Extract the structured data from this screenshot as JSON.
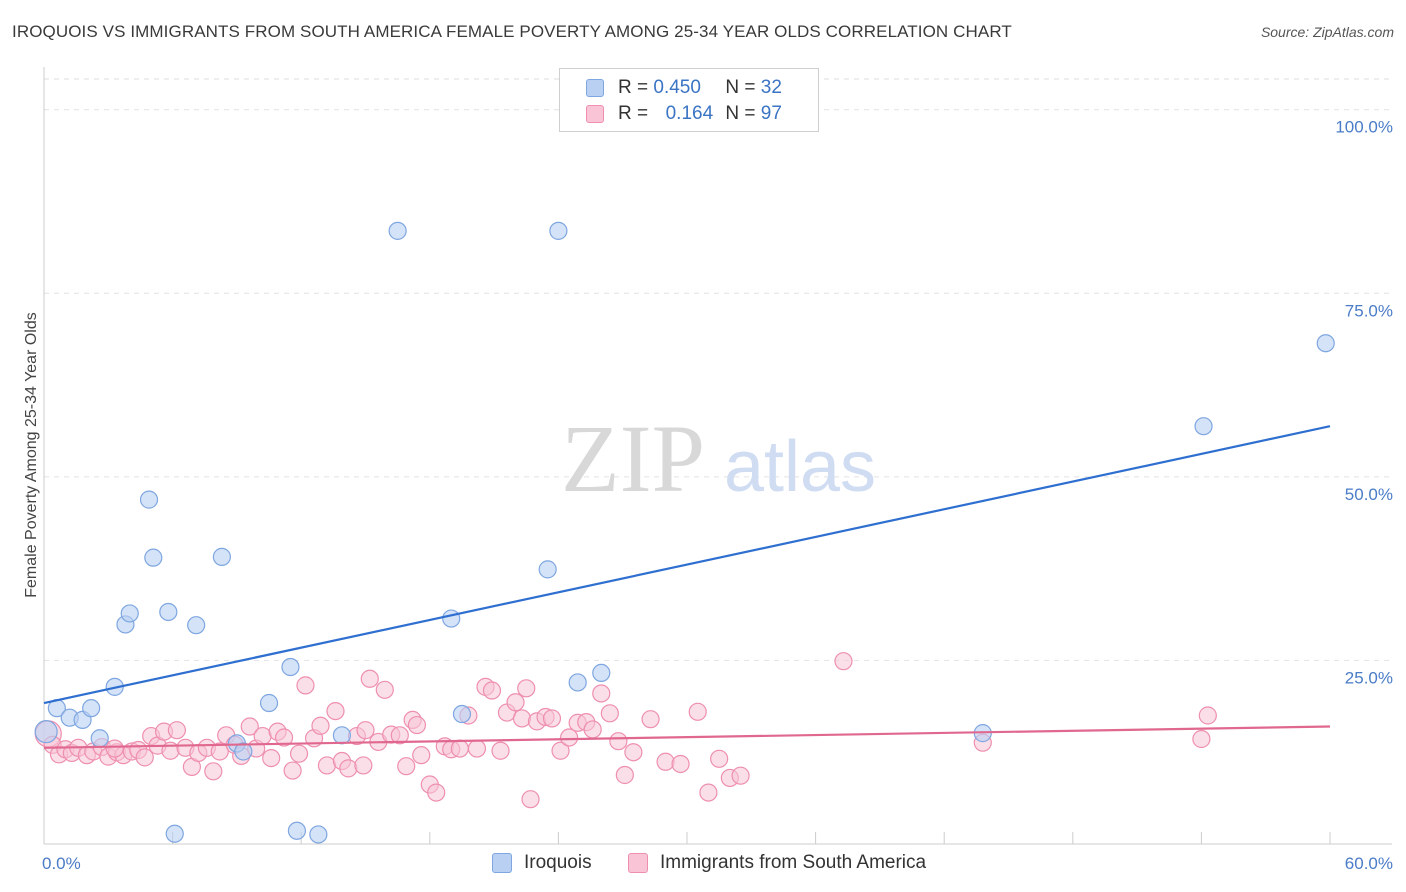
{
  "title": "IROQUOIS VS IMMIGRANTS FROM SOUTH AMERICA FEMALE POVERTY AMONG 25-34 YEAR OLDS CORRELATION CHART",
  "source": "Source: ZipAtlas.com",
  "watermark": {
    "zip": "ZIP",
    "atlas": "atlas"
  },
  "legend": {
    "r_label": "R =",
    "n_label": "N =",
    "rows": [
      {
        "r": "0.450",
        "n": "32"
      },
      {
        "r": "0.164",
        "n": "97"
      }
    ]
  },
  "colors": {
    "iroquois_fill": "#b9d0f3",
    "iroquois_stroke": "#7ea6e0",
    "iroquois_line": "#2e6fd0",
    "sa_fill": "#f8c4d6",
    "sa_stroke": "#ee8fb0",
    "sa_line": "#e0688f",
    "tick": "#4a7cc7"
  },
  "chart_data": {
    "type": "scatter",
    "title": "IROQUOIS VS IMMIGRANTS FROM SOUTH AMERICA FEMALE POVERTY AMONG 25-34 YEAR OLDS CORRELATION CHART",
    "xlabel": "",
    "ylabel": "Female Poverty Among 25-34 Year Olds",
    "xlim": [
      0,
      60
    ],
    "ylim": [
      0,
      105
    ],
    "x_tick_labels": [
      "0.0%",
      "60.0%"
    ],
    "y_ticks": [
      25,
      50,
      75,
      100
    ],
    "y_tick_labels": [
      "25.0%",
      "50.0%",
      "75.0%",
      "100.0%"
    ],
    "legend_position": "top-center",
    "series": [
      {
        "name": "Iroquois",
        "r": 0.45,
        "n": 32,
        "trend": {
          "x": [
            0,
            60
          ],
          "y": [
            19.2,
            56.9
          ]
        },
        "points": [
          [
            0.1,
            15.3
          ],
          [
            0.6,
            18.5
          ],
          [
            1.2,
            17.2
          ],
          [
            1.8,
            16.9
          ],
          [
            2.2,
            18.5
          ],
          [
            2.6,
            14.4
          ],
          [
            3.3,
            21.4
          ],
          [
            3.8,
            29.9
          ],
          [
            4.0,
            31.4
          ],
          [
            4.9,
            46.9
          ],
          [
            5.1,
            39.0
          ],
          [
            5.8,
            31.6
          ],
          [
            6.1,
            1.4
          ],
          [
            7.1,
            29.8
          ],
          [
            8.3,
            39.1
          ],
          [
            9.0,
            13.7
          ],
          [
            9.3,
            12.6
          ],
          [
            10.5,
            19.2
          ],
          [
            11.5,
            24.1
          ],
          [
            11.8,
            1.8
          ],
          [
            12.8,
            1.3
          ],
          [
            13.9,
            14.8
          ],
          [
            16.5,
            83.5
          ],
          [
            19.0,
            30.7
          ],
          [
            19.5,
            17.7
          ],
          [
            23.5,
            37.4
          ],
          [
            24.0,
            83.5
          ],
          [
            24.9,
            22.0
          ],
          [
            26.0,
            23.3
          ],
          [
            43.8,
            15.1
          ],
          [
            54.1,
            56.9
          ],
          [
            59.8,
            68.2
          ]
        ]
      },
      {
        "name": "Immigrants from South America",
        "r": 0.164,
        "n": 97,
        "trend": {
          "x": [
            0,
            60
          ],
          "y": [
            13.1,
            16.0
          ]
        },
        "points": [
          [
            0.2,
            15.0
          ],
          [
            0.4,
            13.5
          ],
          [
            0.7,
            12.2
          ],
          [
            1.0,
            12.9
          ],
          [
            1.3,
            12.4
          ],
          [
            1.6,
            13.1
          ],
          [
            2.0,
            12.1
          ],
          [
            2.3,
            12.6
          ],
          [
            2.7,
            13.2
          ],
          [
            3.0,
            11.9
          ],
          [
            3.4,
            12.5
          ],
          [
            3.7,
            12.1
          ],
          [
            4.1,
            12.6
          ],
          [
            4.4,
            12.8
          ],
          [
            4.7,
            11.8
          ],
          [
            5.0,
            14.7
          ],
          [
            5.3,
            13.4
          ],
          [
            5.6,
            15.3
          ],
          [
            5.9,
            12.7
          ],
          [
            6.2,
            15.5
          ],
          [
            6.6,
            13.1
          ],
          [
            6.9,
            10.5
          ],
          [
            7.2,
            12.4
          ],
          [
            7.6,
            13.1
          ],
          [
            7.9,
            9.9
          ],
          [
            8.2,
            12.6
          ],
          [
            8.5,
            14.8
          ],
          [
            8.9,
            13.5
          ],
          [
            9.2,
            12.0
          ],
          [
            9.6,
            16.0
          ],
          [
            9.9,
            13.0
          ],
          [
            10.2,
            14.7
          ],
          [
            10.6,
            11.7
          ],
          [
            10.9,
            15.3
          ],
          [
            11.2,
            14.5
          ],
          [
            11.6,
            10.0
          ],
          [
            11.9,
            12.3
          ],
          [
            12.2,
            21.6
          ],
          [
            12.6,
            14.4
          ],
          [
            12.9,
            16.1
          ],
          [
            13.2,
            10.7
          ],
          [
            13.6,
            18.1
          ],
          [
            13.9,
            11.3
          ],
          [
            14.2,
            10.3
          ],
          [
            14.6,
            14.7
          ],
          [
            14.9,
            10.7
          ],
          [
            15.2,
            22.5
          ],
          [
            15.6,
            13.9
          ],
          [
            15.9,
            21.0
          ],
          [
            16.2,
            14.9
          ],
          [
            16.6,
            14.8
          ],
          [
            16.9,
            10.6
          ],
          [
            17.2,
            16.9
          ],
          [
            17.6,
            12.1
          ],
          [
            18.0,
            8.1
          ],
          [
            18.3,
            7.0
          ],
          [
            18.7,
            13.3
          ],
          [
            19.0,
            12.9
          ],
          [
            19.4,
            13.0
          ],
          [
            19.8,
            17.5
          ],
          [
            20.2,
            13.0
          ],
          [
            20.6,
            21.4
          ],
          [
            20.9,
            20.9
          ],
          [
            21.3,
            12.7
          ],
          [
            21.6,
            17.9
          ],
          [
            22.0,
            19.3
          ],
          [
            22.3,
            17.1
          ],
          [
            22.7,
            6.1
          ],
          [
            23.0,
            16.7
          ],
          [
            23.4,
            17.3
          ],
          [
            23.7,
            17.1
          ],
          [
            24.1,
            12.7
          ],
          [
            24.5,
            14.5
          ],
          [
            24.9,
            16.5
          ],
          [
            25.3,
            16.6
          ],
          [
            25.6,
            15.6
          ],
          [
            26.0,
            20.5
          ],
          [
            26.4,
            17.8
          ],
          [
            26.8,
            14.0
          ],
          [
            27.1,
            9.4
          ],
          [
            27.5,
            12.5
          ],
          [
            29.0,
            11.2
          ],
          [
            29.7,
            10.9
          ],
          [
            30.5,
            18.0
          ],
          [
            31.0,
            7.0
          ],
          [
            31.5,
            11.6
          ],
          [
            32.0,
            9.0
          ],
          [
            32.5,
            9.3
          ],
          [
            37.3,
            24.9
          ],
          [
            43.8,
            13.8
          ],
          [
            54.0,
            14.3
          ],
          [
            54.3,
            17.5
          ],
          [
            3.3,
            13.0
          ],
          [
            15.0,
            15.5
          ],
          [
            17.4,
            16.2
          ],
          [
            22.5,
            21.2
          ],
          [
            28.3,
            17.0
          ]
        ]
      }
    ]
  }
}
